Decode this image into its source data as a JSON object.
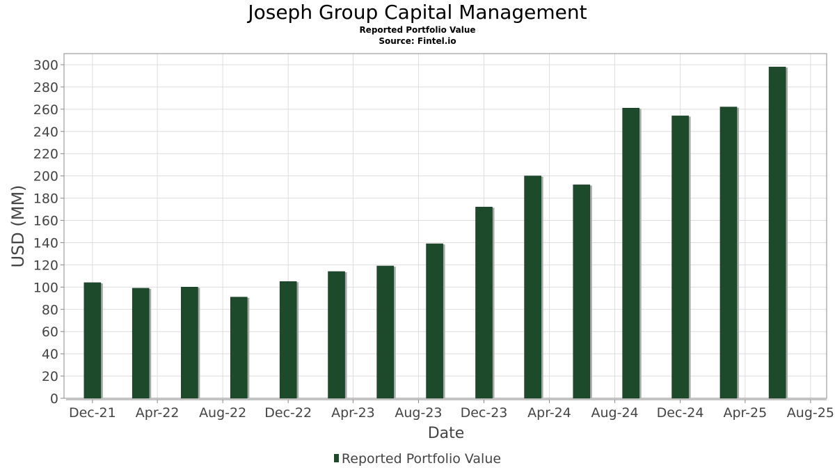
{
  "header": {
    "title": "Joseph Group Capital Management",
    "subtitle": "Reported Portfolio Value",
    "source": "Source: Fintel.io"
  },
  "chart_data": {
    "type": "bar",
    "title": "Joseph Group Capital Management",
    "subtitle": "Reported Portfolio Value",
    "source": "Source: Fintel.io",
    "xlabel": "Date",
    "ylabel": "USD (MM)",
    "ylim": [
      0,
      310
    ],
    "yticks": [
      0,
      20,
      40,
      60,
      80,
      100,
      120,
      140,
      160,
      180,
      200,
      220,
      240,
      260,
      280,
      300
    ],
    "xlim": [
      "2021-10-09",
      "2025-08-31"
    ],
    "xticks": [
      {
        "label": "Dec-21",
        "date": "2021-12-01"
      },
      {
        "label": "Apr-22",
        "date": "2022-04-01"
      },
      {
        "label": "Aug-22",
        "date": "2022-08-01"
      },
      {
        "label": "Dec-22",
        "date": "2022-12-01"
      },
      {
        "label": "Apr-23",
        "date": "2023-04-01"
      },
      {
        "label": "Aug-23",
        "date": "2023-08-01"
      },
      {
        "label": "Dec-23",
        "date": "2023-12-01"
      },
      {
        "label": "Apr-24",
        "date": "2024-04-01"
      },
      {
        "label": "Aug-24",
        "date": "2024-08-01"
      },
      {
        "label": "Dec-24",
        "date": "2024-12-01"
      },
      {
        "label": "Apr-25",
        "date": "2025-04-01"
      },
      {
        "label": "Aug-25",
        "date": "2025-08-01"
      }
    ],
    "grid": true,
    "legend_position": "bottom-center",
    "color": "#1e4a2c",
    "series": [
      {
        "name": "Reported Portfolio Value",
        "points": [
          {
            "x": "2021-12-31",
            "y": 104
          },
          {
            "x": "2022-03-31",
            "y": 99
          },
          {
            "x": "2022-06-30",
            "y": 100
          },
          {
            "x": "2022-09-30",
            "y": 91
          },
          {
            "x": "2022-12-31",
            "y": 105
          },
          {
            "x": "2023-03-31",
            "y": 114
          },
          {
            "x": "2023-06-30",
            "y": 119
          },
          {
            "x": "2023-09-30",
            "y": 139
          },
          {
            "x": "2023-12-31",
            "y": 172
          },
          {
            "x": "2024-03-31",
            "y": 200
          },
          {
            "x": "2024-06-30",
            "y": 192
          },
          {
            "x": "2024-09-30",
            "y": 261
          },
          {
            "x": "2024-12-31",
            "y": 254
          },
          {
            "x": "2025-03-31",
            "y": 262
          },
          {
            "x": "2025-06-30",
            "y": 298
          }
        ]
      }
    ]
  }
}
